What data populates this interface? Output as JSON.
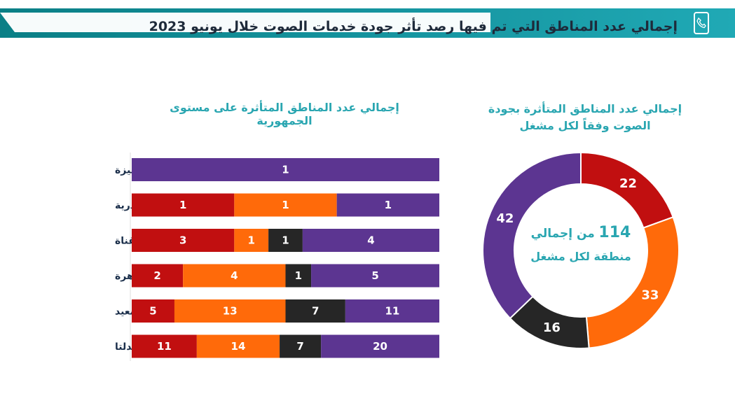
{
  "header": {
    "title": "إجمالي عدد المناطق التي تم فيها رصد تأثر جودة خدمات الصوت خلال يونيو  2023",
    "icon": "phone-icon"
  },
  "colors": {
    "purple": "#5c3591",
    "orange": "#ff6a0a",
    "red": "#c10f10",
    "dark": "#262626",
    "teal": "#2aa6b1"
  },
  "bar_section": {
    "title": "إجمالي عدد المناطق المتأثرة على مستوى الجمهورية"
  },
  "donut_section": {
    "title_line1": "إجمالي عدد المناطق المتأثرة بجودة",
    "title_line2": "الصوت وفقاً لكل مشغل",
    "center_prefix": "من إجمالي",
    "center_total": "114",
    "center_suffix": "منطقة لكل مشغل"
  },
  "chart_data": [
    {
      "type": "bar",
      "orientation": "horizontal-stacked-100",
      "title": "إجمالي عدد المناطق المتأثرة على مستوى الجمهورية",
      "categories": [
        "الجيزة",
        "الإسكندرية",
        "القناة",
        "القاهرة",
        "الصعيد",
        "الدلتا"
      ],
      "series": [
        {
          "name": "red",
          "color": "#c10f10",
          "values": [
            0,
            1,
            3,
            2,
            5,
            11
          ]
        },
        {
          "name": "orange",
          "color": "#ff6a0a",
          "values": [
            0,
            1,
            1,
            4,
            13,
            14
          ]
        },
        {
          "name": "dark",
          "color": "#262626",
          "values": [
            0,
            0,
            1,
            1,
            7,
            7
          ]
        },
        {
          "name": "purple",
          "color": "#5c3591",
          "values": [
            1,
            1,
            4,
            5,
            11,
            20
          ]
        }
      ]
    },
    {
      "type": "pie",
      "variant": "donut",
      "title": "إجمالي عدد المناطق المتأثرة بجودة الصوت وفقاً لكل مشغل",
      "total": 114,
      "slices": [
        {
          "value": 22,
          "color": "#c10f10"
        },
        {
          "value": 33,
          "color": "#ff6a0a"
        },
        {
          "value": 16,
          "color": "#262626"
        },
        {
          "value": 42,
          "color": "#5c3591"
        }
      ]
    }
  ]
}
